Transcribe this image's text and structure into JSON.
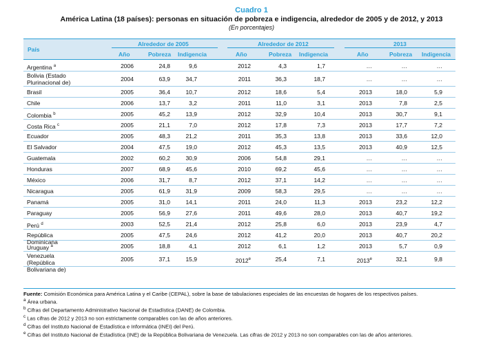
{
  "header": {
    "label": "Cuadro 1",
    "title": "América Latina (18 países): personas en situación de pobreza e indigencia, alrededor de 2005 y de 2012, y 2013",
    "units": "(En porcentajes)"
  },
  "columns": {
    "country": "País",
    "groups": [
      "Alrededor de 2005",
      "Alrededor de 2012",
      "2013"
    ],
    "sub": [
      "Año",
      "Pobreza",
      "Indigencia"
    ]
  },
  "rows": [
    {
      "country": "Argentina",
      "mark": "a",
      "y1": "2006",
      "p1": "24,8",
      "i1": "9,6",
      "y2": "2012",
      "y2mark": "",
      "p2": "4,3",
      "i2": "1,7",
      "y3": "…",
      "y3mark": "",
      "p3": "…",
      "i3": "…"
    },
    {
      "country": "Bolivia (Estado Plurinacional de)",
      "mark": "",
      "y1": "2004",
      "p1": "63,9",
      "i1": "34,7",
      "y2": "2011",
      "y2mark": "",
      "p2": "36,3",
      "i2": "18,7",
      "y3": "…",
      "y3mark": "",
      "p3": "…",
      "i3": "…"
    },
    {
      "country": "Brasil",
      "mark": "",
      "y1": "2005",
      "p1": "36,4",
      "i1": "10,7",
      "y2": "2012",
      "y2mark": "",
      "p2": "18,6",
      "i2": "5,4",
      "y3": "2013",
      "y3mark": "",
      "p3": "18,0",
      "i3": "5,9"
    },
    {
      "country": "Chile",
      "mark": "",
      "y1": "2006",
      "p1": "13,7",
      "i1": "3,2",
      "y2": "2011",
      "y2mark": "",
      "p2": "11,0",
      "i2": "3,1",
      "y3": "2013",
      "y3mark": "",
      "p3": "7,8",
      "i3": "2,5"
    },
    {
      "country": "Colombia",
      "mark": "b",
      "y1": "2005",
      "p1": "45,2",
      "i1": "13,9",
      "y2": "2012",
      "y2mark": "",
      "p2": "32,9",
      "i2": "10,4",
      "y3": "2013",
      "y3mark": "",
      "p3": "30,7",
      "i3": "9,1"
    },
    {
      "country": "Costa Rica",
      "mark": "c",
      "y1": "2005",
      "p1": "21,1",
      "i1": "7,0",
      "y2": "2012",
      "y2mark": "",
      "p2": "17,8",
      "i2": "7,3",
      "y3": "2013",
      "y3mark": "",
      "p3": "17,7",
      "i3": "7,2"
    },
    {
      "country": "Ecuador",
      "mark": "",
      "y1": "2005",
      "p1": "48,3",
      "i1": "21,2",
      "y2": "2011",
      "y2mark": "",
      "p2": "35,3",
      "i2": "13,8",
      "y3": "2013",
      "y3mark": "",
      "p3": "33,6",
      "i3": "12,0"
    },
    {
      "country": "El Salvador",
      "mark": "",
      "y1": "2004",
      "p1": "47,5",
      "i1": "19,0",
      "y2": "2012",
      "y2mark": "",
      "p2": "45,3",
      "i2": "13,5",
      "y3": "2013",
      "y3mark": "",
      "p3": "40,9",
      "i3": "12,5"
    },
    {
      "country": "Guatemala",
      "mark": "",
      "y1": "2002",
      "p1": "60,2",
      "i1": "30,9",
      "y2": "2006",
      "y2mark": "",
      "p2": "54,8",
      "i2": "29,1",
      "y3": "…",
      "y3mark": "",
      "p3": "…",
      "i3": "…"
    },
    {
      "country": "Honduras",
      "mark": "",
      "y1": "2007",
      "p1": "68,9",
      "i1": "45,6",
      "y2": "2010",
      "y2mark": "",
      "p2": "69,2",
      "i2": "45,6",
      "y3": "…",
      "y3mark": "",
      "p3": "…",
      "i3": "…"
    },
    {
      "country": "México",
      "mark": "",
      "y1": "2006",
      "p1": "31,7",
      "i1": "8,7",
      "y2": "2012",
      "y2mark": "",
      "p2": "37,1",
      "i2": "14,2",
      "y3": "…",
      "y3mark": "",
      "p3": "…",
      "i3": "…"
    },
    {
      "country": "Nicaragua",
      "mark": "",
      "y1": "2005",
      "p1": "61,9",
      "i1": "31,9",
      "y2": "2009",
      "y2mark": "",
      "p2": "58,3",
      "i2": "29,5",
      "y3": "…",
      "y3mark": "",
      "p3": "…",
      "i3": "…"
    },
    {
      "country": "Panamá",
      "mark": "",
      "y1": "2005",
      "p1": "31,0",
      "i1": "14,1",
      "y2": "2011",
      "y2mark": "",
      "p2": "24,0",
      "i2": "11,3",
      "y3": "2013",
      "y3mark": "",
      "p3": "23,2",
      "i3": "12,2"
    },
    {
      "country": "Paraguay",
      "mark": "",
      "y1": "2005",
      "p1": "56,9",
      "i1": "27,6",
      "y2": "2011",
      "y2mark": "",
      "p2": "49,6",
      "i2": "28,0",
      "y3": "2013",
      "y3mark": "",
      "p3": "40,7",
      "i3": "19,2"
    },
    {
      "country": "Perú",
      "mark": "d",
      "y1": "2003",
      "p1": "52,5",
      "i1": "21,4",
      "y2": "2012",
      "y2mark": "",
      "p2": "25,8",
      "i2": "6,0",
      "y3": "2013",
      "y3mark": "",
      "p3": "23,9",
      "i3": "4,7"
    },
    {
      "country": "República Dominicana",
      "mark": "",
      "y1": "2005",
      "p1": "47,5",
      "i1": "24,6",
      "y2": "2012",
      "y2mark": "",
      "p2": "41,2",
      "i2": "20,0",
      "y3": "2013",
      "y3mark": "",
      "p3": "40,7",
      "i3": "20,2"
    },
    {
      "country": "Uruguay",
      "mark": "a",
      "y1": "2005",
      "p1": "18,8",
      "i1": "4,1",
      "y2": "2012",
      "y2mark": "",
      "p2": "6,1",
      "i2": "1,2",
      "y3": "2013",
      "y3mark": "",
      "p3": "5,7",
      "i3": "0,9"
    },
    {
      "country": "Venezuela (República Bolivariana de)",
      "mark": "",
      "y1": "2005",
      "p1": "37,1",
      "i1": "15,9",
      "y2": "2012",
      "y2mark": "e",
      "p2": "25,4",
      "i2": "7,1",
      "y3": "2013",
      "y3mark": "e",
      "p3": "32,1",
      "i3": "9,8"
    }
  ],
  "notes": {
    "source_label": "Fuente:",
    "source_text": "Comisión Económica para América Latina y el Caribe (CEPAL), sobre la base de tabulaciones especiales de las encuestas de hogares de los respectivos países.",
    "items": [
      {
        "mark": "a",
        "text": "Área urbana."
      },
      {
        "mark": "b",
        "text": "Cifras del Departamento Administrativo Nacional de Estadística (DANE) de Colombia."
      },
      {
        "mark": "c",
        "text": "Las cifras de 2012 y 2013 no son estrictamente comparables con las de años anteriores."
      },
      {
        "mark": "d",
        "text": "Cifras del Instituto Nacional de Estadística e Informática (INEI) del Perú."
      },
      {
        "mark": "e",
        "text": "Cifras del Instituto Nacional de Estadística (INE) de la República Bolivariana de Venezuela. Las cifras de 2012 y 2013 no son comparables con las de años anteriores."
      }
    ]
  },
  "colors": {
    "accent": "#2a9fd6",
    "header_bg": "#d7e8f4",
    "row_line": "#9ccbe8"
  }
}
